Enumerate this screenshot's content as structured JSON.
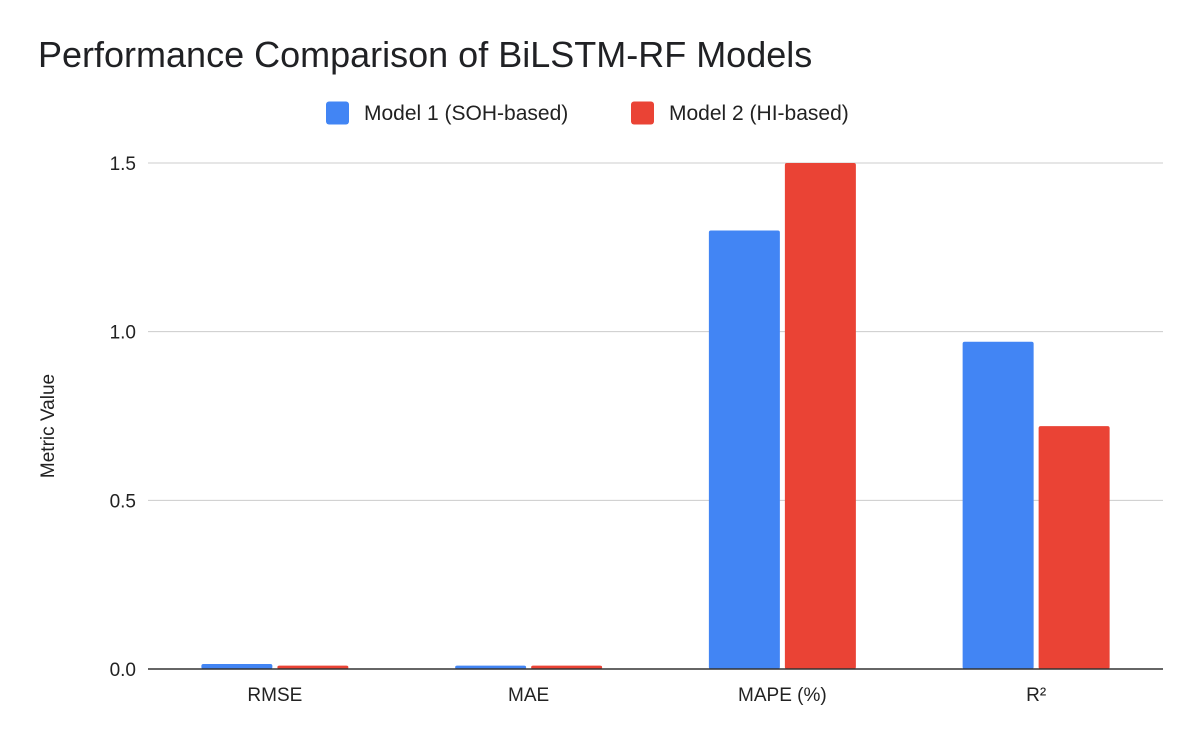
{
  "chart_data": {
    "type": "bar",
    "title": "Performance Comparison of BiLSTM-RF Models",
    "xlabel": "",
    "ylabel": "Metric Value",
    "categories": [
      "RMSE",
      "MAE",
      "MAPE (%)",
      "R²"
    ],
    "series": [
      {
        "name": "Model 1 (SOH-based)",
        "color": "#4285F4",
        "values": [
          0.015,
          0.01,
          1.3,
          0.97
        ]
      },
      {
        "name": "Model 2 (HI-based)",
        "color": "#EA4335",
        "values": [
          0.01,
          0.01,
          1.5,
          0.72
        ]
      }
    ],
    "ylim": [
      0,
      1.5
    ],
    "yticks": [
      "0.0",
      "0.5",
      "1.0",
      "1.5"
    ],
    "grid": true,
    "legend": "top-center"
  }
}
